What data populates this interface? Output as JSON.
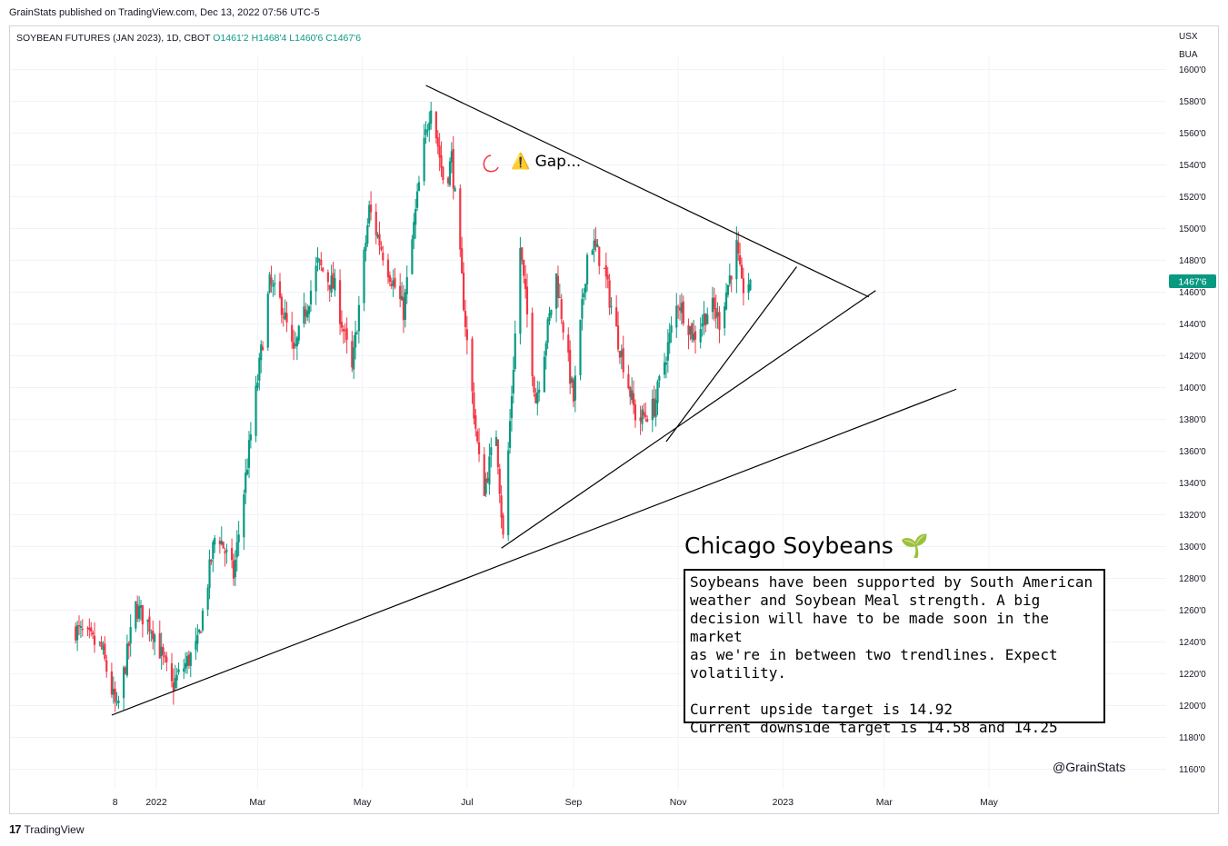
{
  "header": {
    "published_by": "GrainStats published on TradingView.com, Dec 13, 2022 07:56 UTC-5",
    "symbol": "SOYBEAN FUTURES (JAN 2023), 1D, CBOT",
    "ohlc_open": "O1461'2",
    "ohlc_high": "H1468'4",
    "ohlc_low": "L1460'6",
    "ohlc_close": "C1467'6"
  },
  "axis": {
    "currency": "USX",
    "unit": "BUA",
    "current_price_label": "1467'6"
  },
  "colors": {
    "up": "#089981",
    "down": "#f23645",
    "grid": "#f0f3fa",
    "axis_text": "#131722",
    "trendline": "#000000"
  },
  "annotations": {
    "gap_icon": "warning-icon",
    "gap_text": "Gap...",
    "title": "Chicago Soybeans",
    "title_icon": "seedling-icon",
    "box_lines": [
      "Soybeans have been supported by South American",
      "weather and Soybean Meal strength.  A big",
      "decision will have to be made soon in the market",
      "as we're in between two trendlines.  Expect",
      "volatility."
    ],
    "target_up": "Current upside target is 14.92",
    "target_down": "Current downside target is 14.58 and 14.25",
    "watermark": "@GrainStats"
  },
  "footer": {
    "brand": "TradingView"
  },
  "chart_data": {
    "type": "candlestick",
    "title": "SOYBEAN FUTURES (JAN 2023), 1D, CBOT",
    "ylim": [
      1150,
      1610
    ],
    "y_ticks": [
      "1160'0",
      "1180'0",
      "1200'0",
      "1220'0",
      "1240'0",
      "1260'0",
      "1280'0",
      "1300'0",
      "1320'0",
      "1340'0",
      "1360'0",
      "1380'0",
      "1400'0",
      "1420'0",
      "1440'0",
      "1460'0",
      "1480'0",
      "1500'0",
      "1520'0",
      "1540'0",
      "1560'0",
      "1580'0",
      "1600'0"
    ],
    "y_tick_values": [
      1160,
      1180,
      1200,
      1220,
      1240,
      1260,
      1280,
      1300,
      1320,
      1340,
      1360,
      1380,
      1400,
      1420,
      1440,
      1460,
      1480,
      1500,
      1520,
      1540,
      1560,
      1580,
      1600
    ],
    "x_tick_labels": [
      "8",
      "2022",
      "Mar",
      "May",
      "Jul",
      "Sep",
      "Nov",
      "2023",
      "Mar",
      "May"
    ],
    "x_tick_dates": [
      "2021-12-08",
      "2022-01-01",
      "2022-03-01",
      "2022-05-01",
      "2022-07-01",
      "2022-09-01",
      "2022-11-01",
      "2023-01-01",
      "2023-03-01",
      "2023-05-01"
    ],
    "grid": true,
    "price_path": [
      {
        "date": "2021-11-15",
        "close": 1248
      },
      {
        "date": "2021-11-30",
        "close": 1236
      },
      {
        "date": "2021-12-09",
        "close": 1196
      },
      {
        "date": "2021-12-20",
        "close": 1262
      },
      {
        "date": "2021-12-30",
        "close": 1248
      },
      {
        "date": "2022-01-10",
        "close": 1212
      },
      {
        "date": "2022-01-25",
        "close": 1238
      },
      {
        "date": "2022-02-05",
        "close": 1312
      },
      {
        "date": "2022-02-15",
        "close": 1282
      },
      {
        "date": "2022-02-25",
        "close": 1370
      },
      {
        "date": "2022-03-08",
        "close": 1465
      },
      {
        "date": "2022-03-15",
        "close": 1452
      },
      {
        "date": "2022-03-22",
        "close": 1420
      },
      {
        "date": "2022-04-05",
        "close": 1478
      },
      {
        "date": "2022-04-15",
        "close": 1462
      },
      {
        "date": "2022-04-25",
        "close": 1410
      },
      {
        "date": "2022-05-05",
        "close": 1512
      },
      {
        "date": "2022-05-15",
        "close": 1478
      },
      {
        "date": "2022-05-25",
        "close": 1448
      },
      {
        "date": "2022-06-05",
        "close": 1545
      },
      {
        "date": "2022-06-10",
        "close": 1580
      },
      {
        "date": "2022-06-18",
        "close": 1525
      },
      {
        "date": "2022-06-22",
        "close": 1545
      },
      {
        "date": "2022-07-01",
        "close": 1428
      },
      {
        "date": "2022-07-10",
        "close": 1332
      },
      {
        "date": "2022-07-18",
        "close": 1372
      },
      {
        "date": "2022-07-22",
        "close": 1305
      },
      {
        "date": "2022-08-01",
        "close": 1488
      },
      {
        "date": "2022-08-10",
        "close": 1392
      },
      {
        "date": "2022-08-22",
        "close": 1470
      },
      {
        "date": "2022-09-01",
        "close": 1392
      },
      {
        "date": "2022-09-10",
        "close": 1495
      },
      {
        "date": "2022-09-18",
        "close": 1478
      },
      {
        "date": "2022-09-25",
        "close": 1440
      },
      {
        "date": "2022-10-08",
        "close": 1378
      },
      {
        "date": "2022-10-18",
        "close": 1388
      },
      {
        "date": "2022-11-01",
        "close": 1455
      },
      {
        "date": "2022-11-10",
        "close": 1432
      },
      {
        "date": "2022-11-20",
        "close": 1452
      },
      {
        "date": "2022-11-25",
        "close": 1442
      },
      {
        "date": "2022-12-05",
        "close": 1488
      },
      {
        "date": "2022-12-08",
        "close": 1462
      },
      {
        "date": "2022-12-13",
        "close": 1467.75
      }
    ],
    "trendlines": [
      {
        "from": {
          "date": "2022-06-07",
          "price": 1590
        },
        "to": {
          "date": "2023-02-20",
          "price": 1457
        }
      },
      {
        "from": {
          "date": "2021-12-06",
          "price": 1194
        },
        "to": {
          "date": "2023-04-12",
          "price": 1399
        }
      },
      {
        "from": {
          "date": "2022-07-21",
          "price": 1299
        },
        "to": {
          "date": "2023-02-24",
          "price": 1461
        }
      },
      {
        "from": {
          "date": "2022-10-25",
          "price": 1366
        },
        "to": {
          "date": "2023-01-09",
          "price": 1476
        }
      }
    ]
  }
}
